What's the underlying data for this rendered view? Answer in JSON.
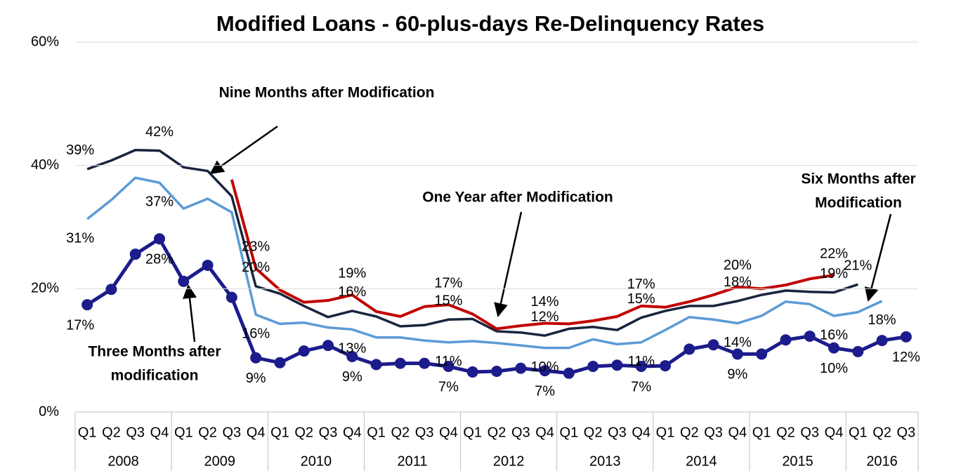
{
  "chart_data": {
    "type": "line",
    "title": "Modified Loans - 60-plus-days Re-Delinquency Rates",
    "categories": [
      "Q1",
      "Q2",
      "Q3",
      "Q4",
      "Q1",
      "Q2",
      "Q3",
      "Q4",
      "Q1",
      "Q2",
      "Q3",
      "Q4",
      "Q1",
      "Q2",
      "Q3",
      "Q4",
      "Q1",
      "Q2",
      "Q3",
      "Q4",
      "Q1",
      "Q2",
      "Q3",
      "Q4",
      "Q1",
      "Q2",
      "Q3",
      "Q4",
      "Q1",
      "Q2",
      "Q3",
      "Q4",
      "Q1",
      "Q2",
      "Q3"
    ],
    "years": [
      "2008",
      "2009",
      "2010",
      "2011",
      "2012",
      "2013",
      "2014",
      "2015",
      "2016"
    ],
    "ylim": [
      0,
      60
    ],
    "yticks": [
      {
        "value": 0,
        "label": "0%"
      },
      {
        "value": 20,
        "label": "20%"
      },
      {
        "value": 40,
        "label": "40%"
      },
      {
        "value": 60,
        "label": "60%"
      }
    ],
    "grid": true,
    "series": [
      {
        "name": "Three Months after modification",
        "color": "#1c1c8c",
        "markers": true,
        "values": [
          17.4,
          19.9,
          25.6,
          28.1,
          21.2,
          23.8,
          18.6,
          8.8,
          8.0,
          9.9,
          10.8,
          9.0,
          7.7,
          7.9,
          7.9,
          7.4,
          6.5,
          6.6,
          7.1,
          6.7,
          6.3,
          7.4,
          7.6,
          7.4,
          7.5,
          10.2,
          10.9,
          9.4,
          9.4,
          11.7,
          12.3,
          10.4,
          9.8,
          11.6,
          12.2
        ],
        "value_labels": [
          "17%",
          null,
          null,
          "28%",
          null,
          null,
          null,
          "9%",
          null,
          null,
          null,
          "9%",
          null,
          null,
          null,
          "7%",
          null,
          null,
          null,
          "7%",
          null,
          null,
          null,
          "7%",
          null,
          null,
          null,
          "9%",
          null,
          null,
          null,
          "10%",
          null,
          null,
          "12%"
        ]
      },
      {
        "name": "Six Months after Modification",
        "color": "#5b9bd5",
        "markers": false,
        "values": [
          31.3,
          34.4,
          38.0,
          37.2,
          33.0,
          34.6,
          32.4,
          15.8,
          14.3,
          14.5,
          13.7,
          13.4,
          12.1,
          12.1,
          11.6,
          11.3,
          11.5,
          11.2,
          10.8,
          10.4,
          10.4,
          11.8,
          11.0,
          11.3,
          13.3,
          15.4,
          15.0,
          14.4,
          15.6,
          17.9,
          17.5,
          15.6,
          16.2,
          18.0,
          null
        ],
        "value_labels": [
          "31%",
          null,
          null,
          "37%",
          null,
          null,
          null,
          "16%",
          null,
          null,
          null,
          "13%",
          null,
          null,
          null,
          "11%",
          null,
          null,
          null,
          "10%",
          null,
          null,
          null,
          "11%",
          null,
          null,
          null,
          "14%",
          null,
          null,
          null,
          "16%",
          null,
          "18%",
          null
        ]
      },
      {
        "name": "Nine Months after Modification",
        "color": "#17253d",
        "markers": false,
        "values": [
          39.4,
          40.8,
          42.5,
          42.4,
          39.7,
          39.1,
          35.0,
          20.4,
          19.2,
          17.2,
          15.4,
          16.4,
          15.5,
          13.9,
          14.1,
          15.0,
          15.1,
          13.1,
          12.9,
          12.4,
          13.5,
          13.8,
          13.3,
          15.3,
          16.4,
          17.2,
          17.2,
          18.0,
          19.0,
          19.7,
          19.5,
          19.4,
          20.7,
          null,
          null
        ],
        "value_labels": [
          "39%",
          null,
          null,
          "42%",
          null,
          null,
          null,
          "20%",
          null,
          null,
          null,
          "16%",
          null,
          null,
          null,
          "15%",
          null,
          null,
          null,
          "12%",
          null,
          null,
          null,
          "15%",
          null,
          null,
          null,
          "18%",
          null,
          null,
          null,
          "19%",
          "21%",
          null,
          null
        ]
      },
      {
        "name": "One Year after Modification",
        "color": "#c00000",
        "markers": false,
        "values": [
          null,
          null,
          null,
          null,
          null,
          null,
          37.7,
          23.3,
          19.8,
          17.8,
          18.1,
          19.0,
          16.3,
          15.5,
          17.1,
          17.4,
          15.9,
          13.5,
          14.0,
          14.4,
          14.3,
          14.8,
          15.5,
          17.2,
          17.0,
          17.9,
          19.0,
          20.3,
          20.0,
          20.6,
          21.6,
          22.2,
          null,
          null,
          null
        ],
        "value_labels": [
          null,
          null,
          null,
          null,
          null,
          null,
          null,
          "23%",
          null,
          null,
          null,
          "19%",
          null,
          null,
          null,
          "17%",
          null,
          null,
          null,
          "14%",
          null,
          null,
          null,
          "17%",
          null,
          null,
          null,
          "20%",
          null,
          null,
          null,
          "22%",
          null,
          null,
          null
        ]
      }
    ],
    "annotations": [
      {
        "lines": [
          "Nine Months after Modification"
        ]
      },
      {
        "lines": [
          "One Year after Modification"
        ]
      },
      {
        "lines": [
          "Six Months after",
          "Modification"
        ]
      },
      {
        "lines": [
          "Three Months after",
          "modification"
        ]
      }
    ]
  }
}
